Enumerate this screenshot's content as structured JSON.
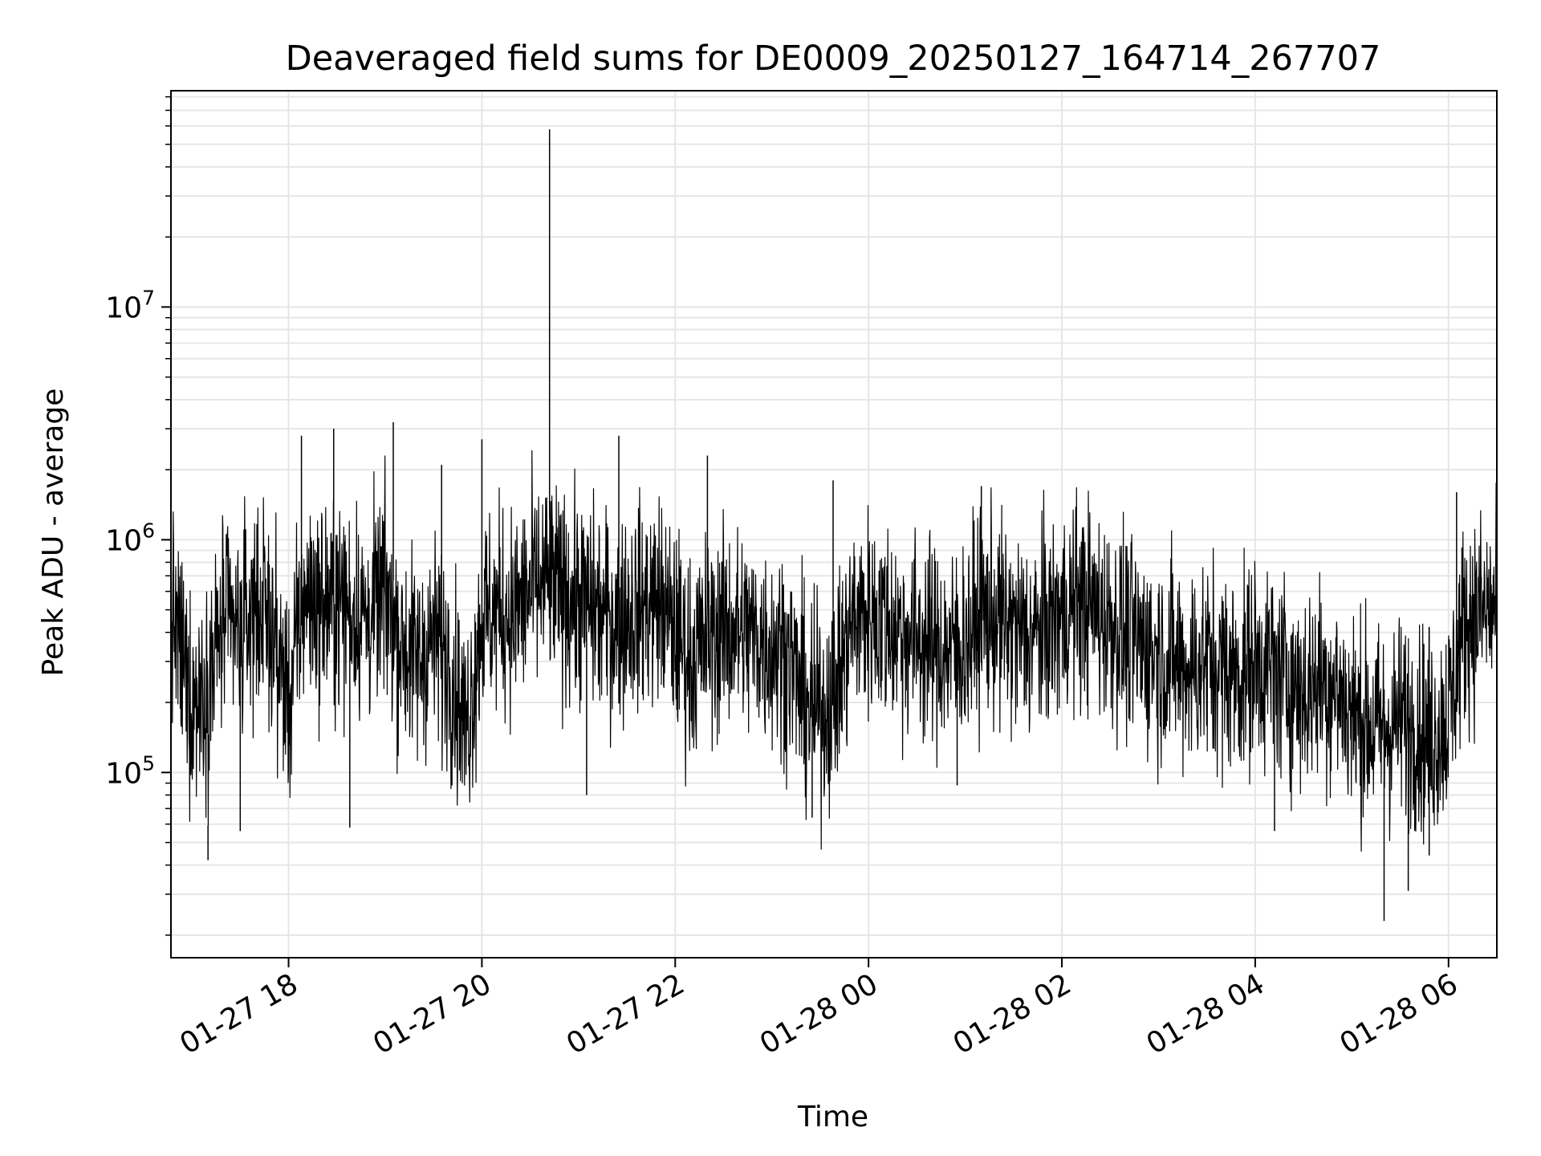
{
  "chart_data": {
    "type": "line",
    "title": "Deaveraged field sums for DE0009_20250127_164714_267707",
    "xlabel": "Time",
    "ylabel": "Peak ADU - average",
    "yscale": "log",
    "ylim": [
      16000,
      85000000
    ],
    "xlim": [
      "2025-01-27 16:47",
      "2025-01-28 06:30"
    ],
    "grid": true,
    "line_color": "#000000",
    "grid_color": "#e6e6e6",
    "x_ticks": [
      {
        "value": "2025-01-27 18:00",
        "label": "01-27 18"
      },
      {
        "value": "2025-01-27 20:00",
        "label": "01-27 20"
      },
      {
        "value": "2025-01-27 22:00",
        "label": "01-27 22"
      },
      {
        "value": "2025-01-28 00:00",
        "label": "01-28 00"
      },
      {
        "value": "2025-01-28 02:00",
        "label": "01-28 02"
      },
      {
        "value": "2025-01-28 04:00",
        "label": "01-28 04"
      },
      {
        "value": "2025-01-28 06:00",
        "label": "01-28 06"
      }
    ],
    "y_ticks": [
      {
        "value": 100000,
        "base": "10",
        "exp": "5"
      },
      {
        "value": 1000000,
        "base": "10",
        "exp": "6"
      },
      {
        "value": 10000000,
        "base": "10",
        "exp": "7"
      }
    ],
    "series": [
      {
        "x": [
          "2025-01-27 16:47",
          "2025-01-27 17:00",
          "2025-01-27 17:10",
          "2025-01-27 17:20",
          "2025-01-27 17:30",
          "2025-01-27 17:40",
          "2025-01-27 17:50",
          "2025-01-27 18:00",
          "2025-01-27 18:10",
          "2025-01-27 18:20",
          "2025-01-27 18:30",
          "2025-01-27 18:40",
          "2025-01-27 18:50",
          "2025-01-27 19:00",
          "2025-01-27 19:10",
          "2025-01-27 19:20",
          "2025-01-27 19:30",
          "2025-01-27 19:40",
          "2025-01-27 19:50",
          "2025-01-27 20:00",
          "2025-01-27 20:10",
          "2025-01-27 20:20",
          "2025-01-27 20:30",
          "2025-01-27 20:40",
          "2025-01-27 20:50",
          "2025-01-27 21:00",
          "2025-01-27 21:10",
          "2025-01-27 21:20",
          "2025-01-27 21:30",
          "2025-01-27 21:40",
          "2025-01-27 21:50",
          "2025-01-27 22:00",
          "2025-01-27 22:10",
          "2025-01-27 22:20",
          "2025-01-27 22:30",
          "2025-01-27 22:40",
          "2025-01-27 22:50",
          "2025-01-27 23:00",
          "2025-01-27 23:10",
          "2025-01-27 23:20",
          "2025-01-27 23:30",
          "2025-01-27 23:40",
          "2025-01-27 23:50",
          "2025-01-28 00:00",
          "2025-01-28 00:10",
          "2025-01-28 00:20",
          "2025-01-28 00:30",
          "2025-01-28 00:40",
          "2025-01-28 00:50",
          "2025-01-28 01:00",
          "2025-01-28 01:10",
          "2025-01-28 01:20",
          "2025-01-28 01:30",
          "2025-01-28 01:40",
          "2025-01-28 01:50",
          "2025-01-28 02:00",
          "2025-01-28 02:10",
          "2025-01-28 02:20",
          "2025-01-28 02:30",
          "2025-01-28 02:40",
          "2025-01-28 02:50",
          "2025-01-28 03:00",
          "2025-01-28 03:10",
          "2025-01-28 03:20",
          "2025-01-28 03:30",
          "2025-01-28 03:40",
          "2025-01-28 03:50",
          "2025-01-28 04:00",
          "2025-01-28 04:10",
          "2025-01-28 04:20",
          "2025-01-28 04:30",
          "2025-01-28 04:40",
          "2025-01-28 04:50",
          "2025-01-28 05:00",
          "2025-01-28 05:10",
          "2025-01-28 05:20",
          "2025-01-28 05:30",
          "2025-01-28 05:40",
          "2025-01-28 05:50",
          "2025-01-28 06:00",
          "2025-01-28 06:10",
          "2025-01-28 06:20",
          "2025-01-28 06:30"
        ],
        "y": [
          500000,
          200000,
          250000,
          450000,
          380000,
          550000,
          400000,
          200000,
          600000,
          500000,
          550000,
          500000,
          450000,
          600000,
          350000,
          300000,
          380000,
          300000,
          150000,
          450000,
          500000,
          480000,
          600000,
          650000,
          580000,
          550000,
          500000,
          450000,
          480000,
          520000,
          550000,
          400000,
          300000,
          380000,
          420000,
          400000,
          380000,
          350000,
          330000,
          200000,
          180000,
          230000,
          450000,
          480000,
          450000,
          400000,
          380000,
          350000,
          330000,
          360000,
          480000,
          450000,
          400000,
          380000,
          420000,
          480000,
          550000,
          500000,
          450000,
          380000,
          350000,
          320000,
          300000,
          280000,
          300000,
          280000,
          260000,
          300000,
          280000,
          250000,
          220000,
          250000,
          230000,
          180000,
          160000,
          150000,
          170000,
          160000,
          140000,
          180000,
          450000,
          480000,
          500000
        ]
      }
    ],
    "spikes": [
      {
        "x": "2025-01-27 20:42",
        "y": 58000000
      },
      {
        "x": "2025-01-27 19:05",
        "y": 3200000
      },
      {
        "x": "2025-01-27 18:08",
        "y": 2800000
      },
      {
        "x": "2025-01-27 18:28",
        "y": 3000000
      },
      {
        "x": "2025-01-27 18:38",
        "y": 58000
      },
      {
        "x": "2025-01-27 17:10",
        "y": 42000
      },
      {
        "x": "2025-01-27 17:30",
        "y": 56000
      },
      {
        "x": "2025-01-27 21:05",
        "y": 80000
      },
      {
        "x": "2025-01-27 21:25",
        "y": 2800000
      },
      {
        "x": "2025-01-27 20:00",
        "y": 2700000
      },
      {
        "x": "2025-01-27 19:35",
        "y": 2100000
      },
      {
        "x": "2025-01-27 22:20",
        "y": 2300000
      },
      {
        "x": "2025-01-27 23:25",
        "y": 64000
      },
      {
        "x": "2025-01-27 23:38",
        "y": 1800000
      },
      {
        "x": "2025-01-28 01:10",
        "y": 1700000
      },
      {
        "x": "2025-01-28 00:55",
        "y": 88000
      },
      {
        "x": "2025-01-28 04:12",
        "y": 56000
      },
      {
        "x": "2025-01-28 05:20",
        "y": 23000
      },
      {
        "x": "2025-01-28 05:35",
        "y": 31000
      },
      {
        "x": "2025-01-28 05:48",
        "y": 44000
      },
      {
        "x": "2025-01-28 06:05",
        "y": 1600000
      }
    ]
  }
}
